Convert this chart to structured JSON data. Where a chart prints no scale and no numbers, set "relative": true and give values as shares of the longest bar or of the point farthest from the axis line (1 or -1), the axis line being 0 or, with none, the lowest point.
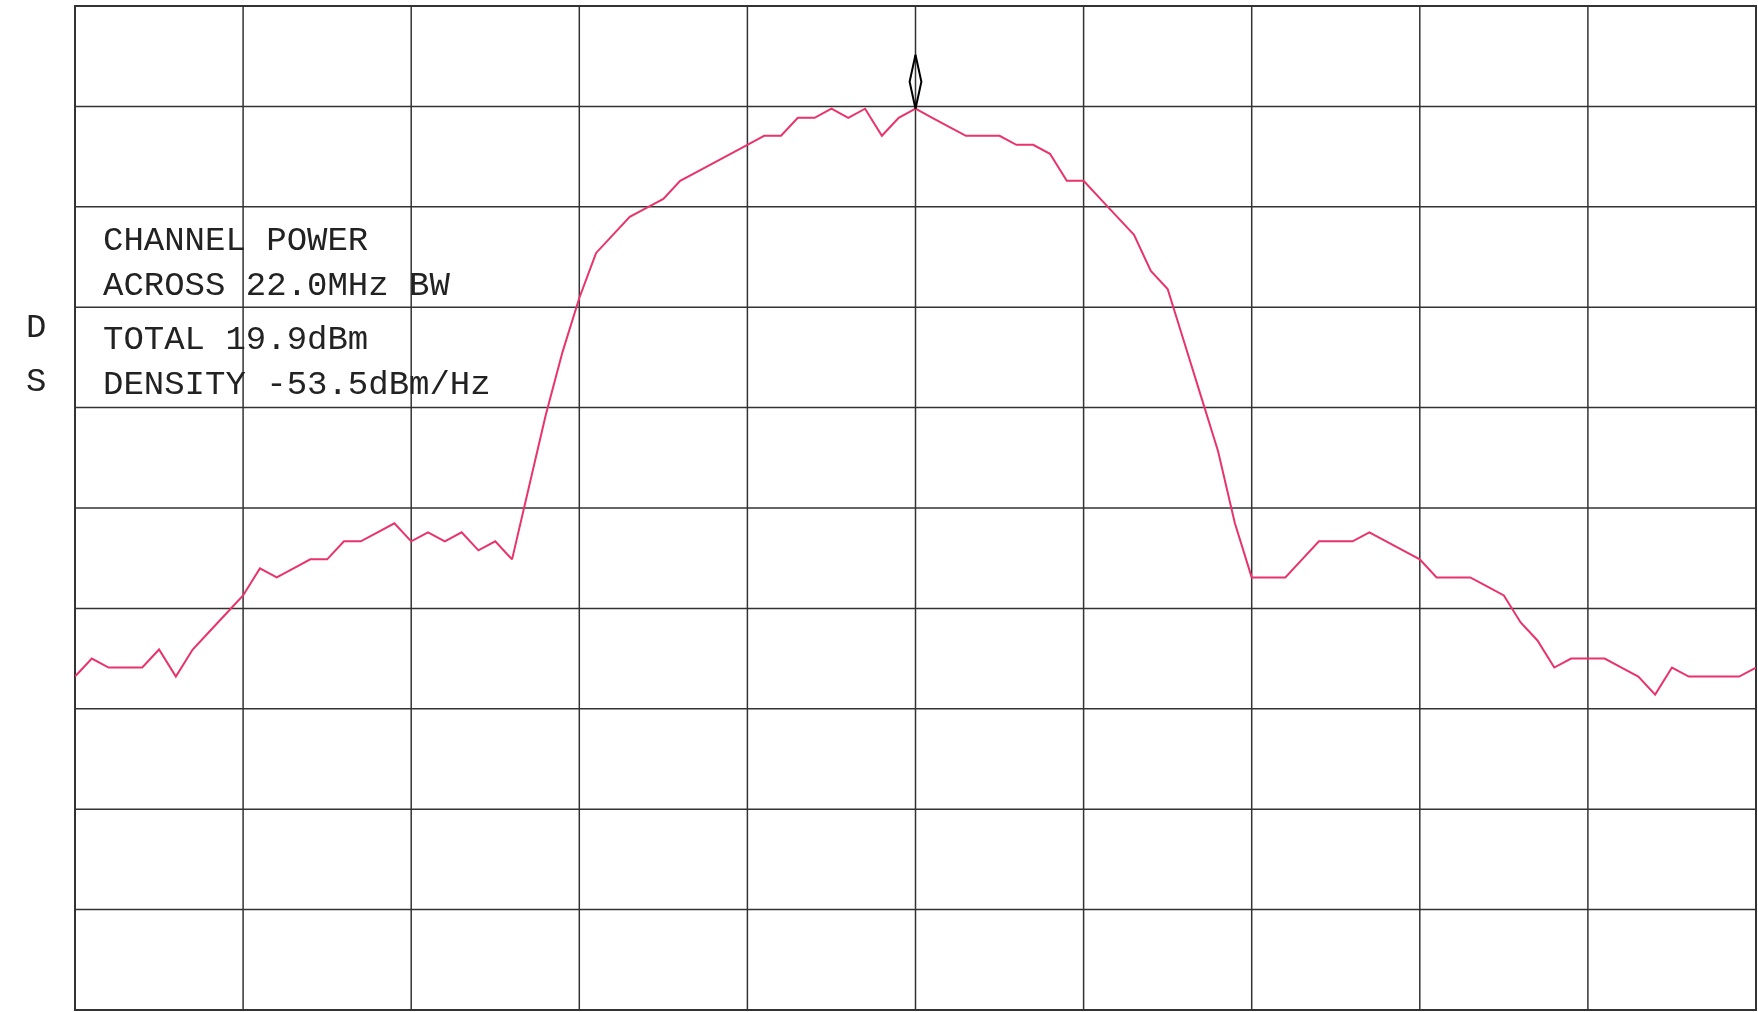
{
  "chart_data": {
    "type": "line",
    "relative": true,
    "grid": true,
    "legend": false,
    "marker": "none",
    "categories": [
      null,
      null,
      null,
      null,
      null,
      null,
      null,
      null,
      null,
      null,
      null,
      null,
      null,
      null,
      null,
      null,
      null,
      null,
      null,
      null,
      null,
      null,
      null,
      null,
      null,
      null,
      null,
      null,
      null,
      null,
      null,
      null,
      null,
      null,
      null,
      null,
      null,
      null,
      null,
      null,
      null,
      null,
      null,
      null,
      null,
      null,
      null,
      null,
      null,
      null,
      null,
      null,
      null,
      null,
      null,
      null,
      null,
      null,
      null,
      null,
      null,
      null,
      null,
      null,
      null,
      null,
      null,
      null,
      null,
      null,
      null,
      null,
      null,
      null,
      null,
      null,
      null,
      null,
      null,
      null,
      null,
      null,
      null,
      null,
      null,
      null,
      null,
      null,
      null,
      null,
      null,
      null,
      null,
      null,
      null,
      null,
      null,
      null,
      null,
      null,
      null
    ],
    "annotations": [
      "CHANNEL POWER",
      "ACROSS 22.0MHz BW",
      "TOTAL 19.9dBm",
      "DENSITY -53.5dBm/Hz",
      "D",
      "S"
    ],
    "series": [
      {
        "color": "#e8336b",
        "values": [
          0.37,
          0.39,
          0.38,
          0.38,
          0.38,
          0.4,
          0.37,
          0.4,
          0.42,
          0.44,
          0.46,
          0.49,
          0.48,
          0.49,
          0.5,
          0.5,
          0.52,
          0.52,
          0.53,
          0.54,
          0.52,
          0.53,
          0.52,
          0.53,
          0.51,
          0.52,
          0.5,
          0.58,
          0.66,
          0.73,
          0.79,
          0.84,
          0.86,
          0.88,
          0.89,
          0.9,
          0.92,
          0.93,
          0.94,
          0.95,
          0.96,
          0.97,
          0.97,
          0.99,
          0.99,
          1,
          0.99,
          1,
          0.97,
          0.99,
          1,
          0.99,
          0.98,
          0.97,
          0.97,
          0.97,
          0.96,
          0.96,
          0.95,
          0.92,
          0.92,
          0.9,
          0.88,
          0.86,
          0.82,
          0.8,
          0.74,
          0.68,
          0.62,
          0.54,
          0.48,
          0.48,
          0.48,
          0.5,
          0.52,
          0.52,
          0.52,
          0.53,
          0.52,
          0.51,
          0.5,
          0.48,
          0.48,
          0.48,
          0.47,
          0.46,
          0.43,
          0.41,
          0.38,
          0.39,
          0.39,
          0.39,
          0.38,
          0.37,
          0.35,
          0.38,
          0.37,
          0.37,
          0.37,
          0.37,
          0.38
        ]
      }
    ]
  }
}
